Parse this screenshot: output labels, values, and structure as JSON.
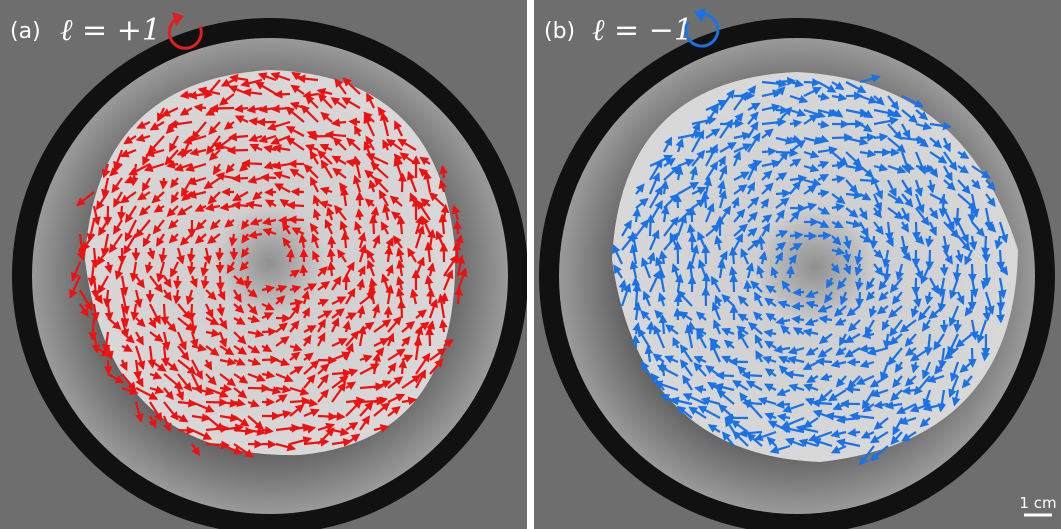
{
  "panels": [
    {
      "label": "(a)",
      "caption": "ℓ = +1"
    },
    {
      "label": "(b)",
      "caption": "ℓ = −1"
    }
  ],
  "scale_bar": "1 cm"
}
